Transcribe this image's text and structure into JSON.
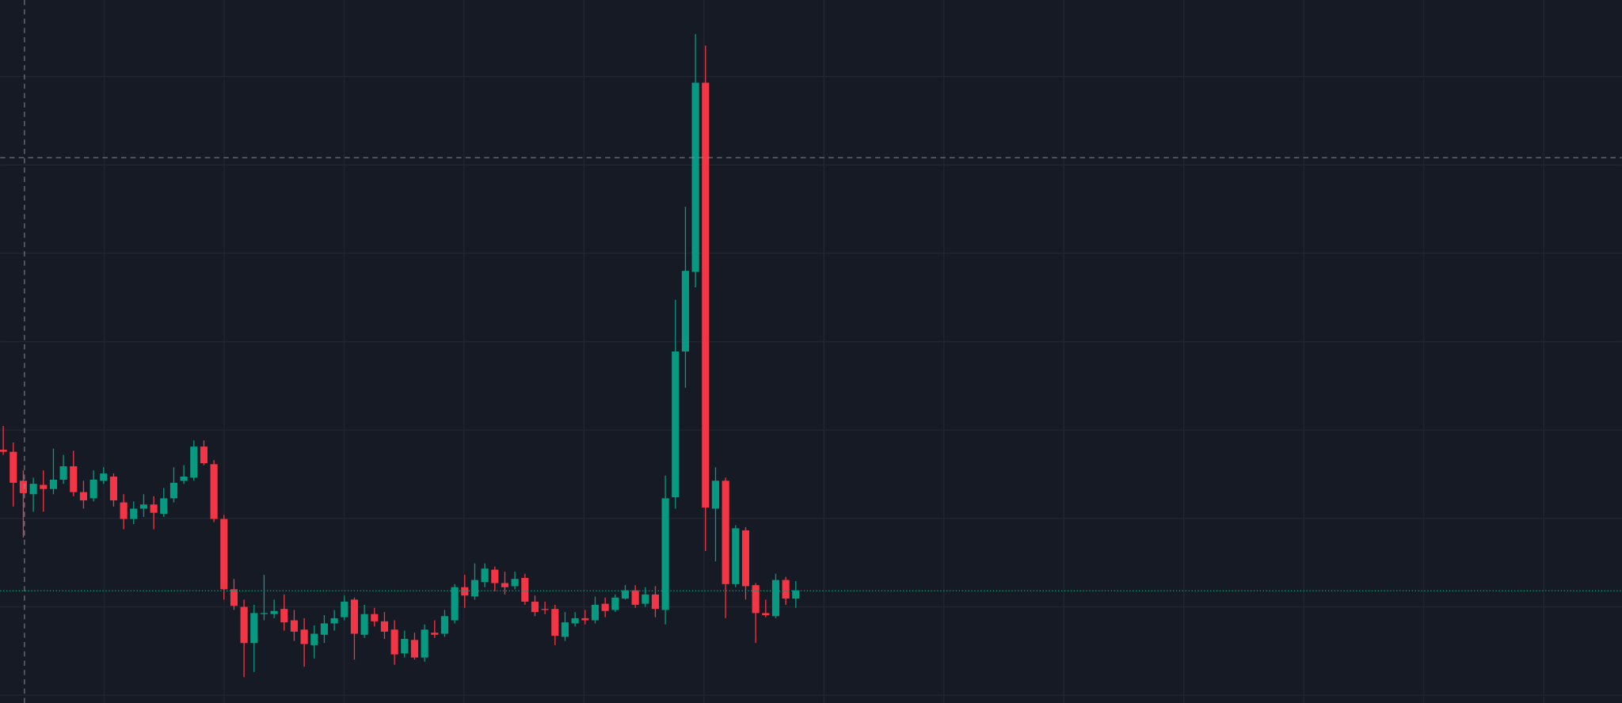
{
  "chart_data": {
    "type": "candlestick",
    "up_color": "#089981",
    "down_color": "#f23645",
    "ylim": [
      0,
      680
    ],
    "open": [
      245,
      243,
      215,
      202,
      211,
      207,
      216,
      229,
      204,
      198,
      215,
      219,
      194,
      178,
      188,
      192,
      183,
      198,
      215,
      218,
      248,
      231,
      178,
      110,
      93,
      58,
      87,
      86,
      91,
      80,
      71,
      56,
      66,
      77,
      83,
      100,
      66,
      86,
      79,
      71,
      48,
      61,
      44,
      68,
      67,
      80,
      112,
      103,
      117,
      129,
      116,
      113,
      121,
      98,
      91,
      91,
      64,
      77,
      82,
      80,
      96,
      90,
      101,
      109,
      96,
      105,
      90,
      199,
      340,
      417,
      600,
      188,
      215,
      115,
      167,
      114,
      87,
      84,
      119,
      101
    ],
    "high": [
      268,
      252,
      225,
      218,
      225,
      246,
      240,
      244,
      215,
      225,
      228,
      222,
      202,
      195,
      202,
      200,
      208,
      228,
      230,
      254,
      254,
      235,
      182,
      120,
      100,
      95,
      124,
      100,
      105,
      90,
      82,
      75,
      85,
      90,
      104,
      102,
      95,
      92,
      88,
      80,
      70,
      68,
      76,
      80,
      90,
      115,
      124,
      135,
      135,
      132,
      127,
      127,
      125,
      104,
      98,
      95,
      88,
      88,
      90,
      103,
      102,
      105,
      114,
      114,
      112,
      113,
      220,
      390,
      480,
      647,
      636,
      228,
      218,
      172,
      170,
      116,
      100,
      125,
      122,
      118
    ],
    "low": [
      240,
      190,
      160,
      185,
      185,
      202,
      212,
      200,
      188,
      195,
      212,
      190,
      168,
      173,
      180,
      168,
      180,
      194,
      212,
      215,
      230,
      175,
      100,
      90,
      25,
      30,
      80,
      82,
      70,
      60,
      35,
      43,
      58,
      70,
      80,
      42,
      63,
      74,
      62,
      37,
      44,
      42,
      40,
      63,
      64,
      77,
      92,
      100,
      112,
      108,
      105,
      110,
      95,
      84,
      86,
      56,
      60,
      74,
      76,
      77,
      83,
      88,
      100,
      92,
      93,
      83,
      76,
      188,
      305,
      402,
      147,
      137,
      82,
      112,
      100,
      58,
      83,
      82,
      95,
      92
    ],
    "close": [
      243,
      213,
      203,
      212,
      207,
      216,
      229,
      204,
      196,
      216,
      222,
      196,
      178,
      188,
      192,
      184,
      198,
      213,
      219,
      248,
      232,
      178,
      110,
      94,
      58,
      87,
      87,
      89,
      78,
      69,
      57,
      67,
      77,
      82,
      98,
      67,
      86,
      79,
      69,
      47,
      62,
      44,
      71,
      66,
      84,
      112,
      104,
      119,
      130,
      116,
      112,
      120,
      98,
      88,
      90,
      65,
      78,
      82,
      80,
      95,
      89,
      102,
      109,
      95,
      105,
      91,
      198,
      340,
      418,
      600,
      189,
      215,
      115,
      169,
      113,
      87,
      85,
      119,
      101,
      109
    ]
  }
}
